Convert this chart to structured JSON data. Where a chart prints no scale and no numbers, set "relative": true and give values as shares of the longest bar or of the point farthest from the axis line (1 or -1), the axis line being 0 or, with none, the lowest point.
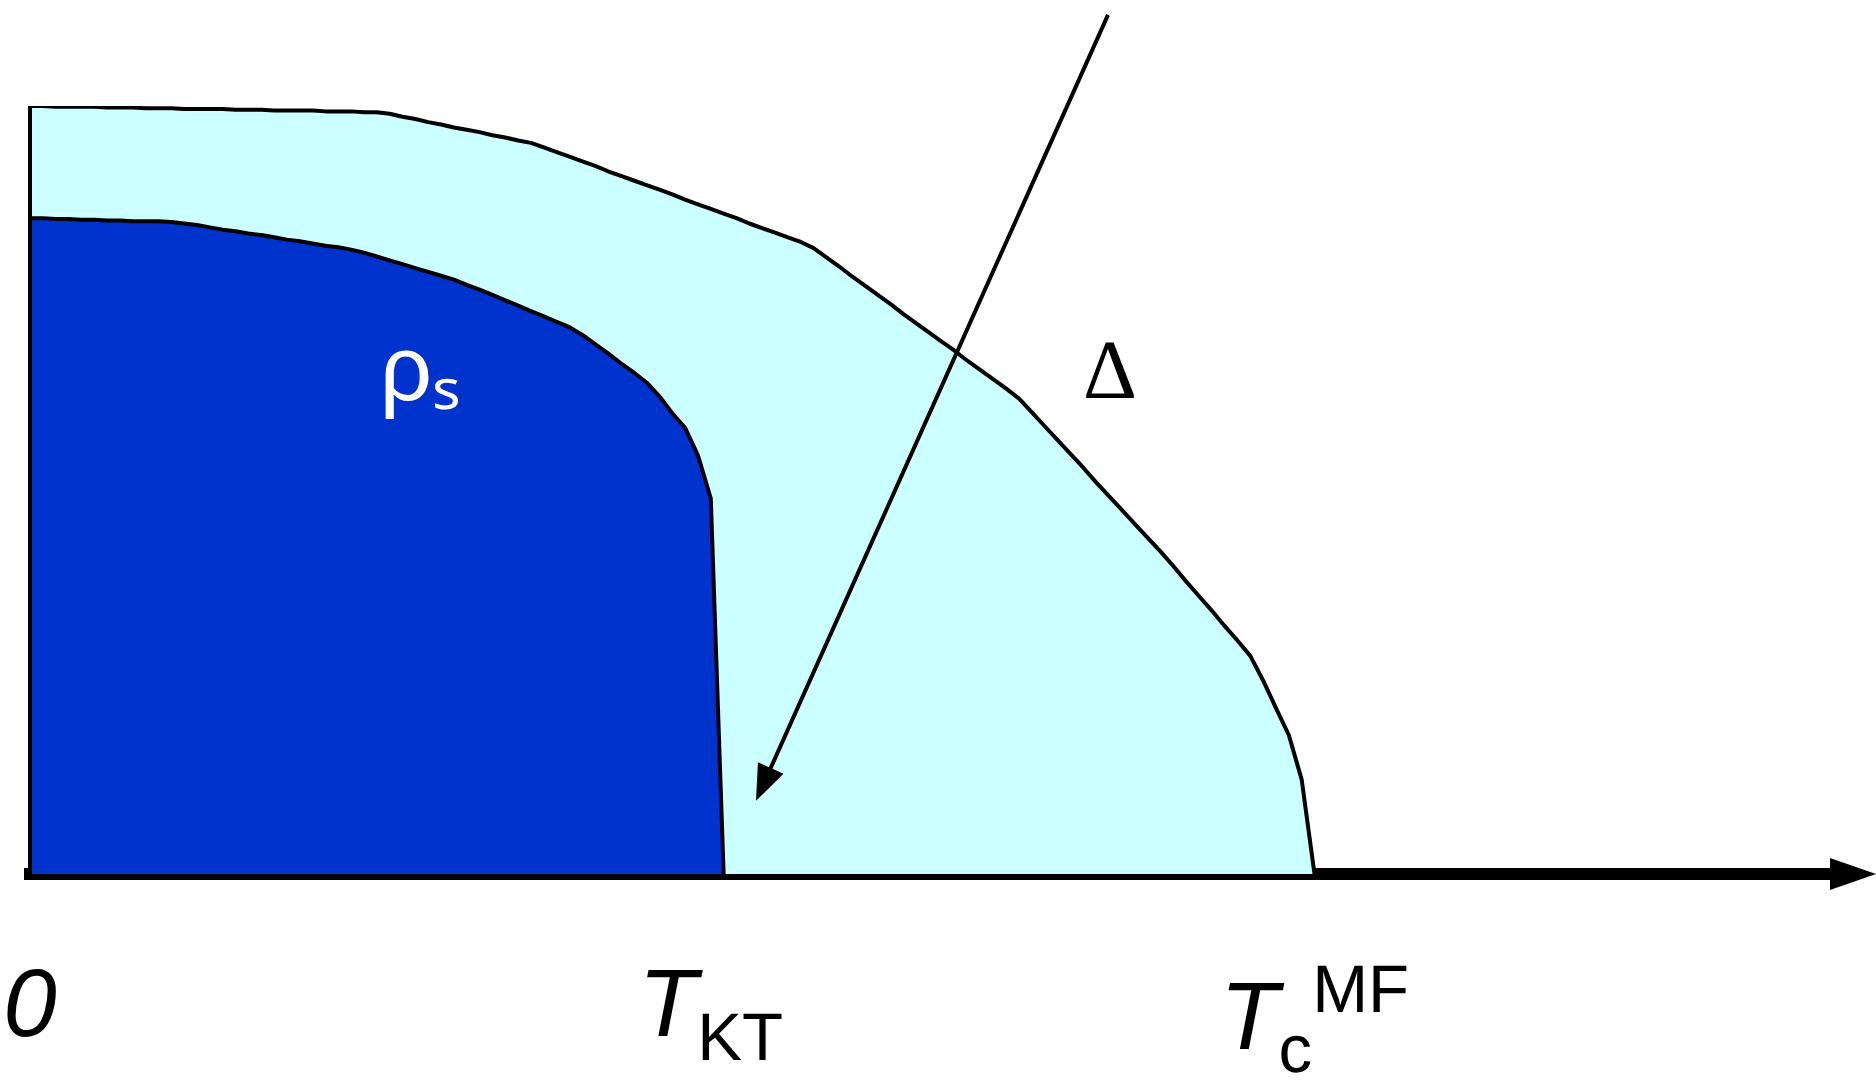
{
  "chart_data": {
    "type": "area",
    "relative": true,
    "categories": [
      "0",
      null,
      null,
      null,
      null,
      null,
      null,
      null,
      null,
      null,
      null,
      null,
      null,
      null,
      null,
      null,
      null,
      null,
      null,
      null,
      null,
      null,
      null,
      null,
      null,
      null,
      null,
      null,
      null,
      null,
      null,
      null,
      null,
      null,
      null,
      null,
      null,
      null,
      null,
      null,
      null,
      null,
      null,
      null,
      null,
      null,
      null,
      null,
      null,
      null,
      null,
      null,
      null,
      "T$_{KT}$",
      null,
      null,
      null,
      null,
      null,
      null,
      null,
      null,
      null,
      null,
      null,
      null,
      null,
      null,
      null,
      null,
      null,
      null,
      null,
      null,
      null,
      null,
      null,
      null,
      null,
      null,
      null,
      null,
      null,
      null,
      null,
      null,
      null,
      null,
      null,
      null,
      null,
      null,
      null,
      null,
      null,
      null,
      null,
      null,
      null,
      null,
      "T$_{c}$$^{MF}$",
      null,
      null,
      null,
      null,
      null,
      null,
      null,
      null,
      null,
      null,
      null,
      null,
      null,
      null,
      null,
      null,
      null,
      null,
      null,
      null,
      null,
      null,
      null,
      null,
      null,
      null,
      null,
      null,
      null,
      null,
      null,
      null,
      null,
      null,
      null,
      null,
      null,
      null,
      null,
      null,
      null,
      null
    ],
    "series": [
      {
        "name": "Δ",
        "color": "#ccffff",
        "values": [
          1,
          1,
          0.999,
          0.999,
          0.999,
          0.999,
          0.998,
          0.998,
          0.998,
          0.997,
          0.997,
          0.997,
          0.996,
          0.996,
          0.996,
          0.996,
          0.995,
          0.995,
          0.995,
          0.994,
          0.994,
          0.994,
          0.994,
          0.993,
          0.993,
          0.993,
          0.992,
          0.992,
          0.99,
          0.986,
          0.983,
          0.979,
          0.976,
          0.972,
          0.969,
          0.966,
          0.962,
          0.959,
          0.955,
          0.952,
          0.946,
          0.94,
          0.934,
          0.928,
          0.922,
          0.915,
          0.909,
          0.903,
          0.897,
          0.891,
          0.885,
          0.878,
          0.872,
          0.866,
          0.86,
          0.854,
          0.847,
          0.841,
          0.835,
          0.829,
          0.823,
          0.815,
          0.803,
          0.791,
          0.778,
          0.766,
          0.754,
          0.742,
          0.729,
          0.717,
          0.705,
          0.693,
          0.681,
          0.668,
          0.656,
          0.644,
          0.632,
          0.619,
          0.601,
          0.583,
          0.565,
          0.547,
          0.529,
          0.51,
          0.492,
          0.474,
          0.456,
          0.438,
          0.42,
          0.401,
          0.381,
          0.362,
          0.343,
          0.323,
          0.304,
          0.284,
          0.252,
          0.216,
          0.181,
          0.123,
          0,
          null,
          null,
          null,
          null,
          null,
          null,
          null,
          null,
          null,
          null,
          null,
          null,
          null,
          null,
          null,
          null,
          null,
          null,
          null,
          null,
          null,
          null,
          null,
          null,
          null,
          null,
          null,
          null,
          null,
          null,
          null,
          null,
          null,
          null,
          null,
          null,
          null,
          null,
          null,
          null,
          null,
          null
        ]
      },
      {
        "name": "ρₛ",
        "color": "#0033cc",
        "values": [
          0.854,
          0.854,
          0.853,
          0.853,
          0.852,
          0.852,
          0.851,
          0.851,
          0.85,
          0.85,
          0.85,
          0.849,
          0.847,
          0.845,
          0.842,
          0.839,
          0.837,
          0.834,
          0.832,
          0.829,
          0.826,
          0.824,
          0.821,
          0.818,
          0.816,
          0.813,
          0.809,
          0.804,
          0.799,
          0.794,
          0.789,
          0.784,
          0.779,
          0.774,
          0.767,
          0.761,
          0.754,
          0.747,
          0.74,
          0.733,
          0.726,
          0.719,
          0.712,
          0.702,
          0.69,
          0.678,
          0.665,
          0.653,
          0.64,
          0.622,
          0.6,
          0.581,
          0.545,
          0.489,
          0,
          null,
          null,
          null,
          null,
          null,
          null,
          null,
          null,
          null,
          null,
          null,
          null,
          null,
          null,
          null,
          null,
          null,
          null,
          null,
          null,
          null,
          null,
          null,
          null,
          null,
          null,
          null,
          null,
          null,
          null,
          null,
          null,
          null,
          null,
          null,
          null,
          null,
          null,
          null,
          null,
          null,
          null,
          null,
          null,
          null,
          null,
          null,
          null,
          null,
          null,
          null,
          null,
          null,
          null,
          null,
          null,
          null,
          null,
          null,
          null,
          null,
          null,
          null,
          null,
          null,
          null,
          null,
          null,
          null,
          null,
          null,
          null,
          null,
          null,
          null,
          null,
          null,
          null,
          null,
          null,
          null,
          null,
          null,
          null,
          null,
          null,
          null,
          null
        ]
      }
    ]
  }
}
